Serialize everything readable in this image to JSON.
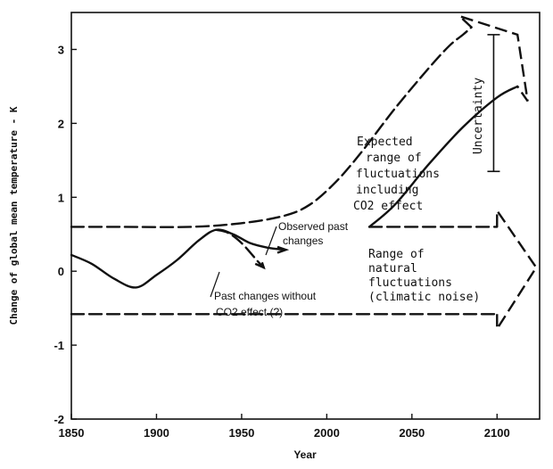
{
  "chart_data": {
    "type": "line",
    "title": "",
    "xlabel": "Year",
    "ylabel": "Change of global mean temperature - K",
    "xlim": [
      1850,
      2125
    ],
    "ylim": [
      -2,
      3.5
    ],
    "x_ticks": [
      1850,
      1900,
      1950,
      2000,
      2050,
      2100
    ],
    "y_ticks": [
      -2,
      -1,
      0,
      1,
      2,
      3
    ],
    "grid": false,
    "legend": "none",
    "series": [
      {
        "name": "Observed past changes",
        "style": "solid",
        "points": [
          [
            1850,
            0.22
          ],
          [
            1862,
            0.1
          ],
          [
            1875,
            -0.1
          ],
          [
            1888,
            -0.22
          ],
          [
            1900,
            -0.05
          ],
          [
            1912,
            0.15
          ],
          [
            1925,
            0.42
          ],
          [
            1935,
            0.56
          ],
          [
            1945,
            0.5
          ],
          [
            1955,
            0.38
          ],
          [
            1965,
            0.32
          ],
          [
            1975,
            0.29
          ]
        ]
      },
      {
        "name": "Past changes without CO2 effect (?)",
        "style": "dashed",
        "points": [
          [
            1935,
            0.56
          ],
          [
            1942,
            0.52
          ],
          [
            1950,
            0.38
          ],
          [
            1960,
            0.12
          ],
          [
            1963,
            0.05
          ]
        ]
      },
      {
        "name": "Expected range of fluctuations including CO2 effect (upper bound)",
        "style": "dashed",
        "points": [
          [
            1850,
            0.6
          ],
          [
            1880,
            0.6
          ],
          [
            1920,
            0.6
          ],
          [
            1950,
            0.65
          ],
          [
            1975,
            0.75
          ],
          [
            1990,
            0.9
          ],
          [
            2005,
            1.2
          ],
          [
            2020,
            1.6
          ],
          [
            2040,
            2.2
          ],
          [
            2060,
            2.75
          ],
          [
            2072,
            3.05
          ],
          [
            2080,
            3.2
          ],
          [
            2085,
            3.3
          ]
        ]
      },
      {
        "name": "Expected range of fluctuations including CO2 effect (lower bound)",
        "style": "solid",
        "points": [
          [
            2025,
            0.6
          ],
          [
            2040,
            0.9
          ],
          [
            2060,
            1.45
          ],
          [
            2080,
            1.95
          ],
          [
            2100,
            2.35
          ],
          [
            2112,
            2.5
          ]
        ]
      },
      {
        "name": "Range of natural fluctuations upper bound",
        "style": "dashed",
        "points": [
          [
            2025,
            0.6
          ],
          [
            2100,
            0.6
          ]
        ]
      },
      {
        "name": "Range of natural fluctuations lower bound",
        "style": "dashed",
        "points": [
          [
            1850,
            -0.58
          ],
          [
            2100,
            -0.58
          ]
        ]
      }
    ],
    "uncertainty_range": {
      "year": 2098,
      "low": 1.35,
      "high": 3.2
    },
    "annotations": {
      "expected_range": [
        "Expected",
        "range of",
        "fluctuations",
        "including",
        "CO2 effect"
      ],
      "observed": [
        "Observed past",
        "changes"
      ],
      "without_co2": [
        "Past changes without",
        "CO2 effect (?)"
      ],
      "natural": [
        "Range of",
        "natural",
        "fluctuations",
        "(climatic noise)"
      ],
      "uncertainty": "Uncertainty"
    }
  }
}
